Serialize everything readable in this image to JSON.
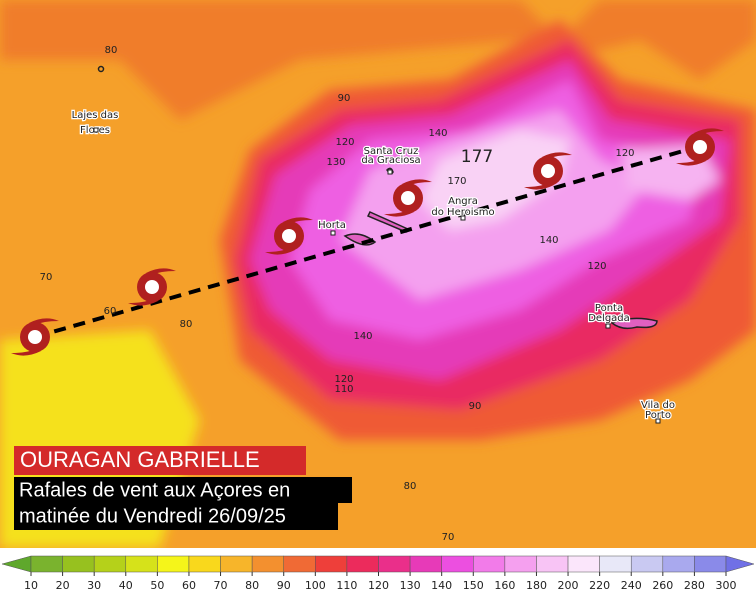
{
  "title": "OURAGAN GABRIELLE",
  "subtitle": [
    "Rafales de vent aux Açores en",
    "matinée du Vendredi 26/09/25"
  ],
  "places": [
    [
      "Lajes das",
      "Flores"
    ],
    [
      "Santa Cruz",
      "da Graciosa"
    ],
    [
      "Horta"
    ],
    [
      "Angra",
      "do Heroismo"
    ],
    [
      "Ponta",
      "Delgada"
    ],
    [
      "Vila do",
      "Porto"
    ]
  ],
  "max_label": 177,
  "contour_labels": [
    80,
    90,
    120,
    130,
    140,
    170,
    120,
    140,
    120,
    70,
    60,
    80,
    140,
    120,
    110,
    90,
    80,
    70
  ],
  "colorbar": {
    "ticks": [
      10,
      20,
      30,
      40,
      50,
      60,
      70,
      80,
      90,
      100,
      110,
      120,
      130,
      140,
      150,
      160,
      180,
      200,
      220,
      240,
      260,
      280,
      300
    ],
    "colors": [
      "#5fa82c",
      "#7ab32e",
      "#97c11f",
      "#b5d11a",
      "#d6e21a",
      "#f5f51a",
      "#f9d81c",
      "#f7b52a",
      "#f3902f",
      "#f06a35",
      "#ee3f3a",
      "#ec2b5c",
      "#ea2f8a",
      "#e73ab8",
      "#ec4fe0",
      "#f27be9",
      "#f5a0ef",
      "#f8c4f5",
      "#fbe6fb",
      "#e8e8f8",
      "#c9c9f2",
      "#a9a9ee",
      "#8a8ae9",
      "#7070e6"
    ]
  }
}
